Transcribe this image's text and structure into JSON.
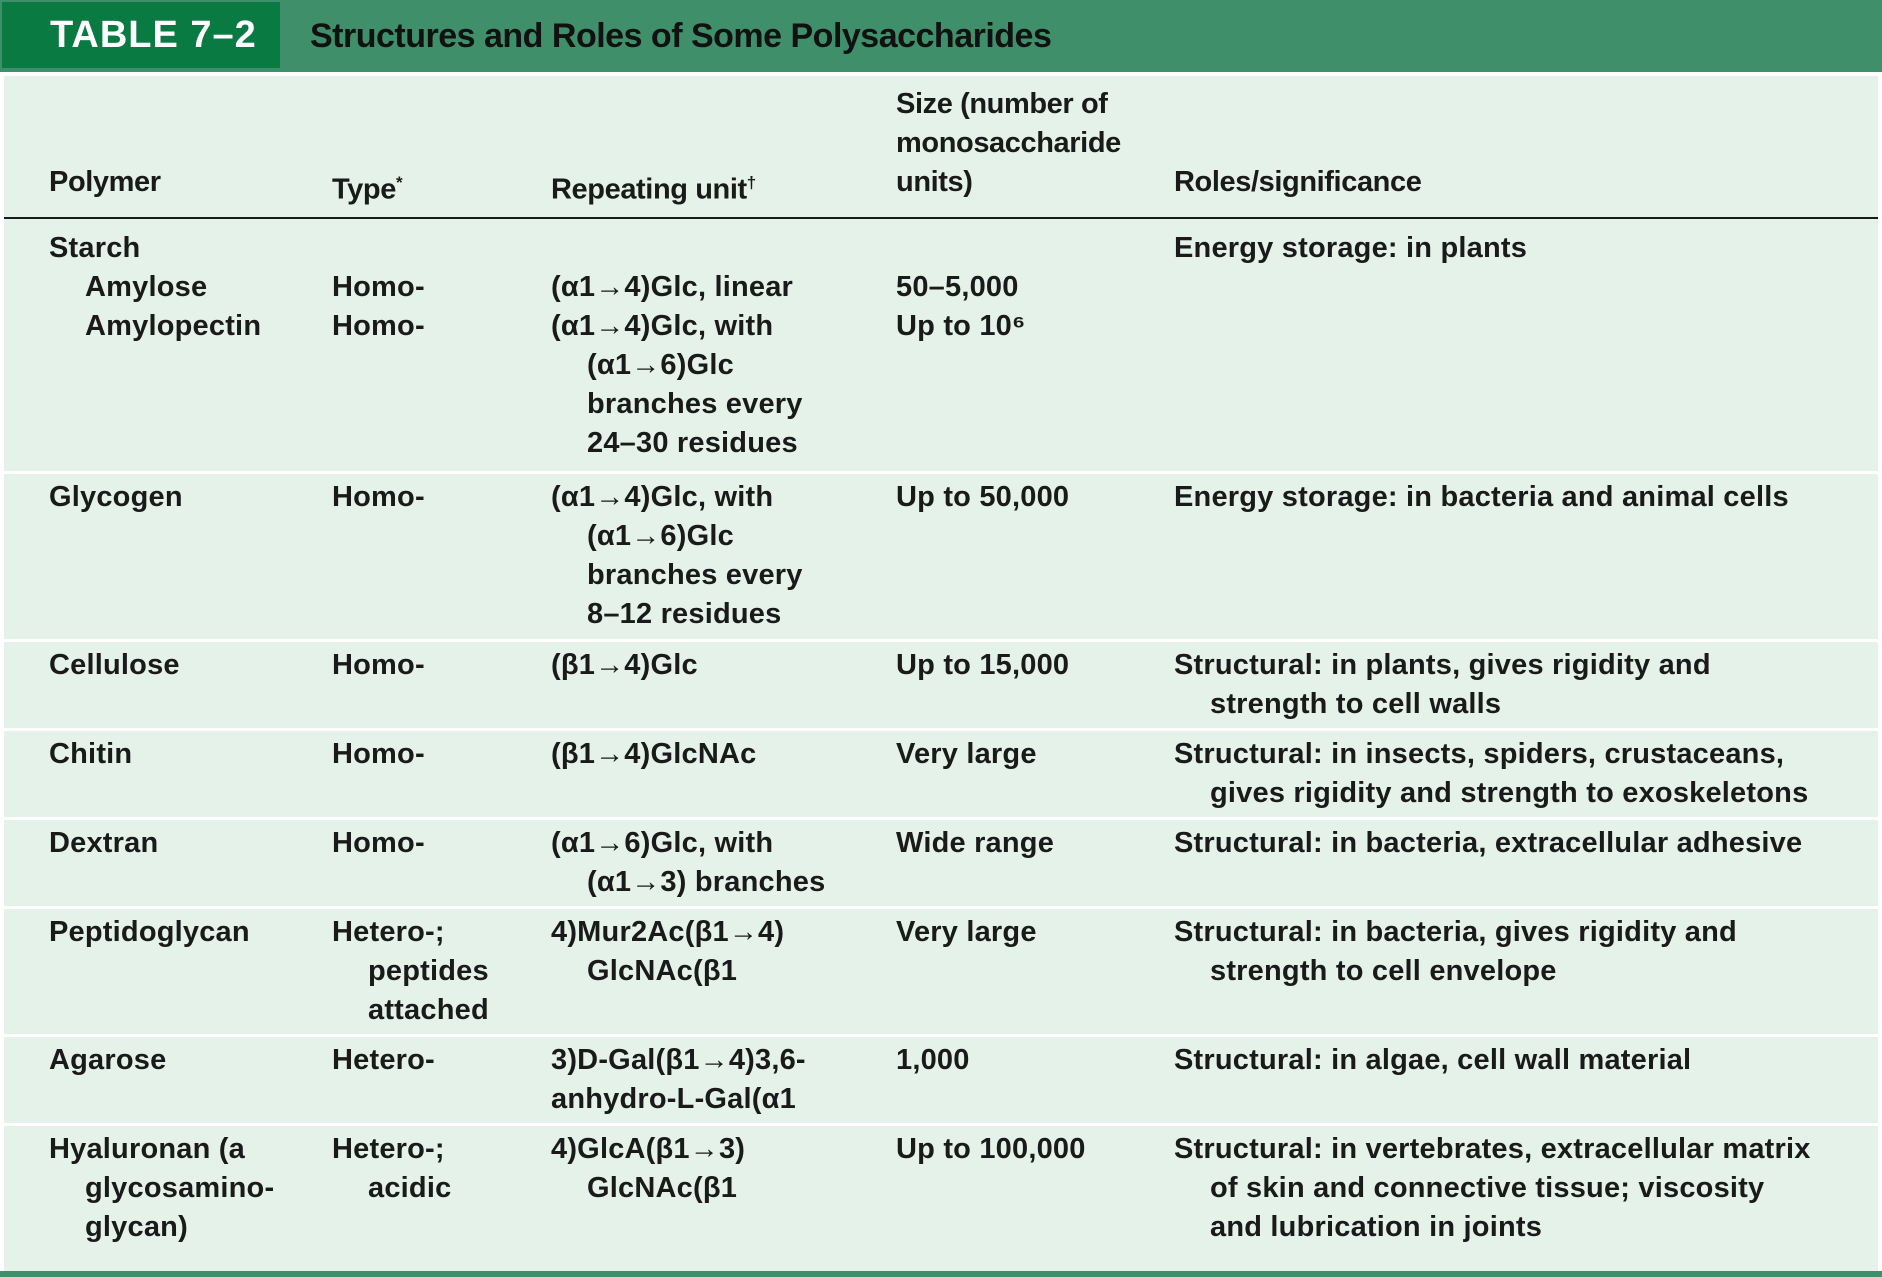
{
  "table": {
    "label": "TABLE 7–2",
    "title": "Structures and Roles of Some Polysaccharides"
  },
  "columns": {
    "polymer": "Polymer",
    "type": "Type",
    "type_mark": "*",
    "unit": "Repeating unit",
    "unit_mark": "†",
    "size_1": "Size (number of",
    "size_2": "monosaccharide",
    "size_3": "units)",
    "roles": "Roles/significance"
  },
  "rows": {
    "starch": {
      "polymer": "Starch",
      "roles": "Energy storage: in plants"
    },
    "amylose": {
      "polymer": "Amylose",
      "type": "Homo-",
      "unit": "(α1→4)Glc, linear",
      "size": "50–5,000"
    },
    "amylopectin": {
      "polymer": "Amylopectin",
      "type": "Homo-",
      "unit_1": "(α1→4)Glc, with",
      "unit_2": "(α1→6)Glc",
      "unit_3": "branches every",
      "unit_4": "24–30 residues",
      "size": "Up to 10⁶"
    },
    "glycogen": {
      "polymer": "Glycogen",
      "type": "Homo-",
      "unit_1": "(α1→4)Glc, with",
      "unit_2": "(α1→6)Glc",
      "unit_3": "branches every",
      "unit_4": "8–12 residues",
      "size": "Up to 50,000",
      "roles": "Energy storage: in bacteria and animal cells"
    },
    "cellulose": {
      "polymer": "Cellulose",
      "type": "Homo-",
      "unit": "(β1→4)Glc",
      "size": "Up to 15,000",
      "roles_1": "Structural: in plants, gives rigidity and",
      "roles_2": "strength to cell walls"
    },
    "chitin": {
      "polymer": "Chitin",
      "type": "Homo-",
      "unit": "(β1→4)GlcNAc",
      "size": "Very large",
      "roles_1": "Structural: in insects, spiders, crustaceans,",
      "roles_2": "gives rigidity and strength to exoskeletons"
    },
    "dextran": {
      "polymer": "Dextran",
      "type": "Homo-",
      "unit_1": "(α1→6)Glc, with",
      "unit_2": "(α1→3) branches",
      "size": "Wide range",
      "roles": "Structural: in bacteria, extracellular adhesive"
    },
    "peptidoglycan": {
      "polymer": "Peptidoglycan",
      "type_1": "Hetero-;",
      "type_2": "peptides",
      "type_3": "attached",
      "unit_1": "4)Mur2Ac(β1→4)",
      "unit_2": "GlcNAc(β1",
      "size": "Very large",
      "roles_1": "Structural: in bacteria, gives rigidity and",
      "roles_2": "strength to cell envelope"
    },
    "agarose": {
      "polymer": "Agarose",
      "type": "Hetero-",
      "unit_1": "3)D-Gal(β1→4)3,6-",
      "unit_2": "anhydro-L-Gal(α1",
      "size": "1,000",
      "roles": "Structural: in algae, cell wall material"
    },
    "hyaluronan": {
      "polymer_1": "Hyaluronan (a",
      "polymer_2": "glycosamino-",
      "polymer_3": "glycan)",
      "type_1": "Hetero-;",
      "type_2": "acidic",
      "unit_1": "4)GlcA(β1→3)",
      "unit_2": "GlcNAc(β1",
      "size": "Up to 100,000",
      "roles_1": "Structural: in vertebrates, extracellular matrix",
      "roles_2": "of skin and connective tissue; viscosity",
      "roles_3": "and lubrication in joints"
    }
  },
  "colors": {
    "label_bg": "#0a7a43",
    "title_bg": "#3e8f6a",
    "table_bg": "#e4f2ea",
    "row_divider": "#ffffff"
  }
}
